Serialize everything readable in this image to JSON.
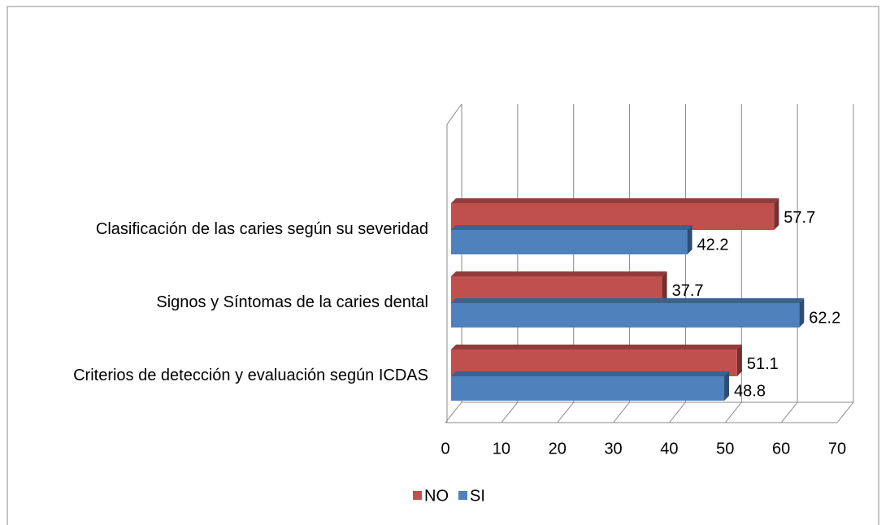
{
  "chart_data": {
    "type": "bar",
    "orientation": "horizontal",
    "categories": [
      "Clasificación de las caries según su severidad",
      "Signos y Síntomas de la caries dental",
      "Criterios de detección y evaluación según ICDAS"
    ],
    "series": [
      {
        "name": "NO",
        "color": "#c0504d",
        "values": [
          57.7,
          37.7,
          51.1
        ]
      },
      {
        "name": "SI",
        "color": "#4f81bd",
        "values": [
          42.2,
          62.2,
          48.8
        ]
      }
    ],
    "xlim": [
      0,
      70
    ],
    "xticks": [
      0,
      10,
      20,
      30,
      40,
      50,
      60,
      70
    ],
    "grid": true,
    "legend": "bottom"
  }
}
